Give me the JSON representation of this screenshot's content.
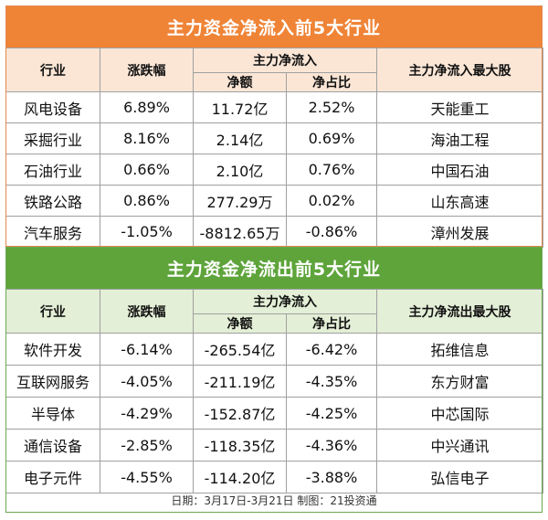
{
  "inflow": {
    "title": "主力资金净流入前5大行业",
    "headers": {
      "industry": "行业",
      "change": "涨跌幅",
      "group": "主力净流入",
      "net": "净额",
      "ratio": "净占比",
      "top_stock": "主力净流入最大股"
    },
    "rows": [
      {
        "industry": "风电设备",
        "change": "6.89%",
        "net": "11.72亿",
        "ratio": "2.52%",
        "stock": "天能重工"
      },
      {
        "industry": "采掘行业",
        "change": "8.16%",
        "net": "2.14亿",
        "ratio": "0.69%",
        "stock": "海油工程"
      },
      {
        "industry": "石油行业",
        "change": "0.66%",
        "net": "2.10亿",
        "ratio": "0.76%",
        "stock": "中国石油"
      },
      {
        "industry": "铁路公路",
        "change": "0.86%",
        "net": "277.29万",
        "ratio": "0.02%",
        "stock": "山东高速"
      },
      {
        "industry": "汽车服务",
        "change": "-1.05%",
        "net": "-8812.65万",
        "ratio": "-0.86%",
        "stock": "漳州发展"
      }
    ]
  },
  "outflow": {
    "title": "主力资金净流出前5大行业",
    "headers": {
      "industry": "行业",
      "change": "涨跌幅",
      "group": "主力净流入",
      "net": "净额",
      "ratio": "净占比",
      "top_stock": "主力净流出最大股"
    },
    "rows": [
      {
        "industry": "软件开发",
        "change": "-6.14%",
        "net": "-265.54亿",
        "ratio": "-6.42%",
        "stock": "拓维信息"
      },
      {
        "industry": "互联网服务",
        "change": "-4.05%",
        "net": "-211.19亿",
        "ratio": "-4.35%",
        "stock": "东方财富"
      },
      {
        "industry": "半导体",
        "change": "-4.29%",
        "net": "-152.87亿",
        "ratio": "-4.25%",
        "stock": "中芯国际"
      },
      {
        "industry": "通信设备",
        "change": "-2.85%",
        "net": "-118.35亿",
        "ratio": "-4.36%",
        "stock": "中兴通讯"
      },
      {
        "industry": "电子元件",
        "change": "-4.55%",
        "net": "-114.20亿",
        "ratio": "-3.88%",
        "stock": "弘信电子"
      }
    ]
  },
  "footer": "日期：3月17日-3月21日 制图：21投资通",
  "colors": {
    "inflow_banner": "#ef8437",
    "inflow_header": "#fbe6d6",
    "outflow_banner": "#5ea43b",
    "outflow_header": "#e3efd6"
  }
}
